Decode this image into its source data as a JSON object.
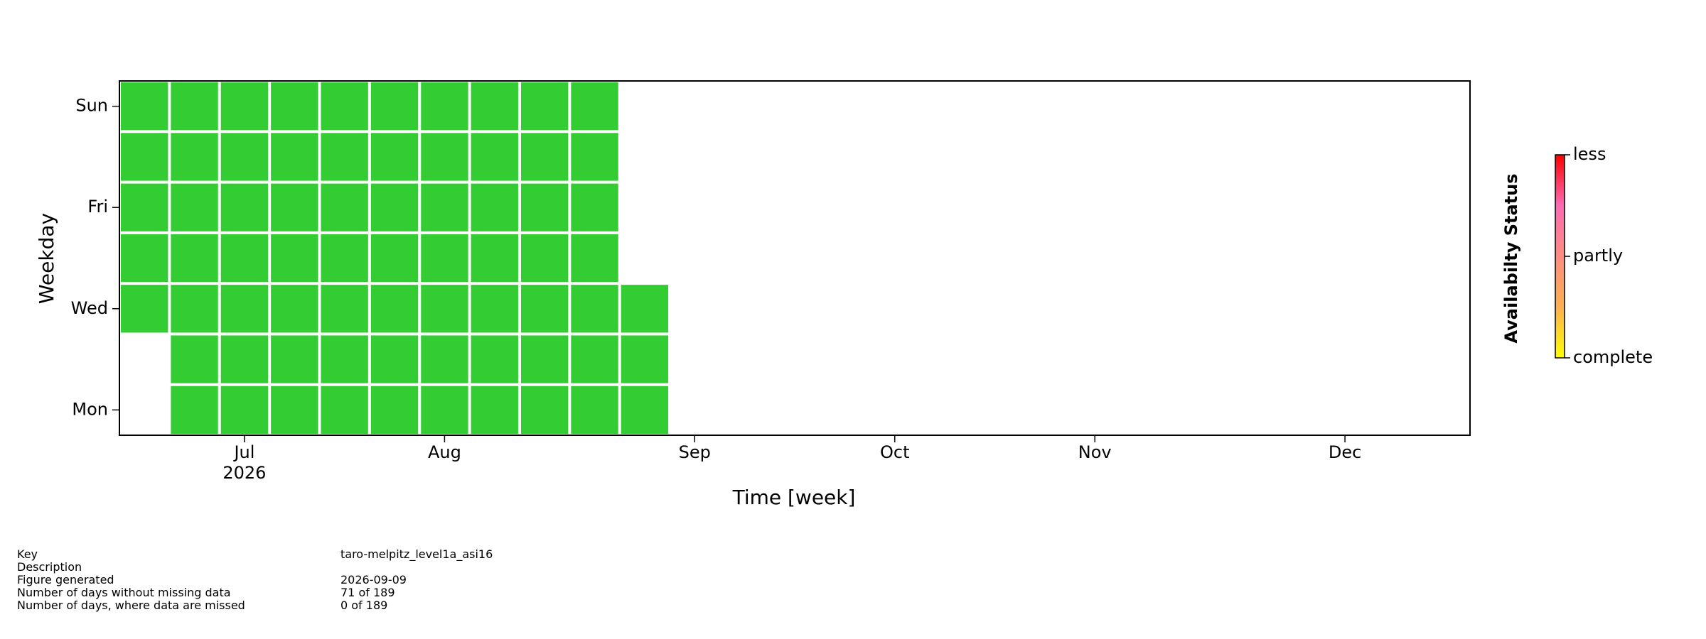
{
  "chart_data": {
    "type": "calendar-heatmap",
    "xlabel": "Time [week]",
    "ylabel": "Weekday",
    "xlim": [
      0,
      27
    ],
    "xticks": [
      {
        "value": 2.5,
        "label": "Jul\n2026"
      },
      {
        "value": 6.5,
        "label": "Aug"
      },
      {
        "value": 11.5,
        "label": "Sep"
      },
      {
        "value": 15.5,
        "label": "Oct"
      },
      {
        "value": 19.5,
        "label": "Nov"
      },
      {
        "value": 24.5,
        "label": "Dec"
      }
    ],
    "ylim": [
      -0.5,
      6.5
    ],
    "yticks": [
      {
        "value": 0,
        "label": "Mon"
      },
      {
        "value": 2,
        "label": "Wed"
      },
      {
        "value": 4,
        "label": "Fri"
      },
      {
        "value": 6,
        "label": "Sun"
      }
    ],
    "complete_color": "#33cc33",
    "z": [
      [
        null,
        0,
        0,
        0,
        0,
        0,
        0,
        0,
        0,
        0,
        0,
        null,
        null,
        null,
        null,
        null,
        null,
        null,
        null,
        null,
        null,
        null,
        null,
        null,
        null,
        null,
        null
      ],
      [
        null,
        0,
        0,
        0,
        0,
        0,
        0,
        0,
        0,
        0,
        0,
        null,
        null,
        null,
        null,
        null,
        null,
        null,
        null,
        null,
        null,
        null,
        null,
        null,
        null,
        null,
        null
      ],
      [
        0,
        0,
        0,
        0,
        0,
        0,
        0,
        0,
        0,
        0,
        0,
        null,
        null,
        null,
        null,
        null,
        null,
        null,
        null,
        null,
        null,
        null,
        null,
        null,
        null,
        null,
        null
      ],
      [
        0,
        0,
        0,
        0,
        0,
        0,
        0,
        0,
        0,
        0,
        null,
        null,
        null,
        null,
        null,
        null,
        null,
        null,
        null,
        null,
        null,
        null,
        null,
        null,
        null,
        null,
        null
      ],
      [
        0,
        0,
        0,
        0,
        0,
        0,
        0,
        0,
        0,
        0,
        null,
        null,
        null,
        null,
        null,
        null,
        null,
        null,
        null,
        null,
        null,
        null,
        null,
        null,
        null,
        null,
        null
      ],
      [
        0,
        0,
        0,
        0,
        0,
        0,
        0,
        0,
        0,
        0,
        null,
        null,
        null,
        null,
        null,
        null,
        null,
        null,
        null,
        null,
        null,
        null,
        null,
        null,
        null,
        null,
        null
      ],
      [
        0,
        0,
        0,
        0,
        0,
        0,
        0,
        0,
        0,
        0,
        null,
        null,
        null,
        null,
        null,
        null,
        null,
        null,
        null,
        null,
        null,
        null,
        null,
        null,
        null,
        null,
        null
      ]
    ],
    "colorbar": {
      "label": "Availabilty Status",
      "lim": [
        0,
        1
      ],
      "colors": [
        "#ffff00",
        "#ffb050",
        "#ff8c80",
        "#ff69b4",
        "#ff0000"
      ],
      "ticks": [
        {
          "value": 0,
          "label": "complete"
        },
        {
          "value": 0.5,
          "label": "partly"
        },
        {
          "value": 1,
          "label": "less"
        }
      ]
    }
  },
  "footer": {
    "rows": [
      [
        "Key",
        "taro-melpitz_level1a_asi16"
      ],
      [
        "Description"
      ],
      [
        "Figure generated",
        "2026-09-09"
      ],
      [
        "Number of days without missing data",
        "71 of 189"
      ],
      [
        "Number of days, where data are missed",
        "0 of 189"
      ]
    ]
  }
}
